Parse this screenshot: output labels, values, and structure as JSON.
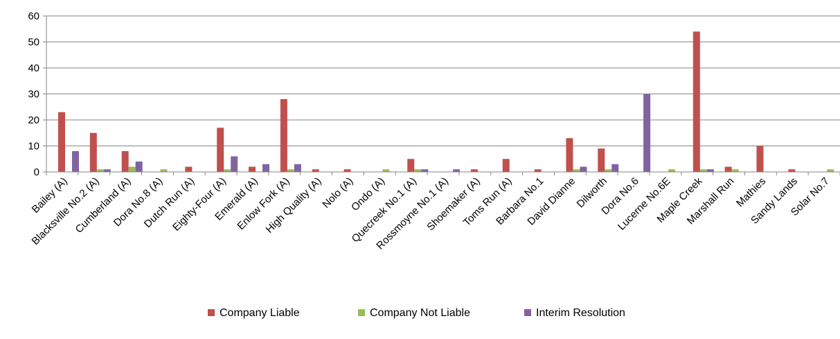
{
  "chart_data": {
    "type": "bar",
    "title": "",
    "xlabel": "",
    "ylabel": "",
    "ylim": [
      0,
      60
    ],
    "yticks": [
      0,
      10,
      20,
      30,
      40,
      50,
      60
    ],
    "grid": true,
    "legend_position": "bottom",
    "categories": [
      "Bailey (A)",
      "Blacksville No.2 (A)",
      "Cumberland (A)",
      "Dora No.8 (A)",
      "Dutch Run (A)",
      "Eighty-Four (A)",
      "Emerald (A)",
      "Enlow Fork (A)",
      "High Quality (A)",
      "Nolo (A)",
      "Ondo (A)",
      "Quecreek No.1 (A)",
      "Rossmoyne No.1 (A)",
      "Shoemaker (A)",
      "Toms Run (A)",
      "Barbara No.1",
      "David Dianne",
      "Dilworth",
      "Dora No.6",
      "Lucerne No.6E",
      "Maple Creek",
      "Marshall Run",
      "Mathies",
      "Sandy Lands",
      "Solar No.7"
    ],
    "series": [
      {
        "name": "Company Liable",
        "color": "#c0504d",
        "values": [
          23,
          15,
          8,
          0,
          2,
          17,
          2,
          28,
          1,
          1,
          0,
          5,
          0,
          1,
          5,
          1,
          13,
          9,
          0,
          0,
          54,
          2,
          10,
          1,
          0
        ]
      },
      {
        "name": "Company Not Liable",
        "color": "#9bbb59",
        "values": [
          0,
          1,
          2,
          1,
          0,
          1,
          0,
          1,
          0,
          0,
          1,
          1,
          0,
          0,
          0,
          0,
          1,
          1,
          0,
          1,
          1,
          1,
          0,
          0,
          1
        ]
      },
      {
        "name": "Interim Resolution",
        "color": "#8064a2",
        "values": [
          8,
          1,
          4,
          0,
          0,
          6,
          3,
          3,
          0,
          0,
          0,
          1,
          1,
          0,
          0,
          0,
          2,
          3,
          30,
          0,
          1,
          0,
          0,
          0,
          0
        ]
      }
    ]
  }
}
